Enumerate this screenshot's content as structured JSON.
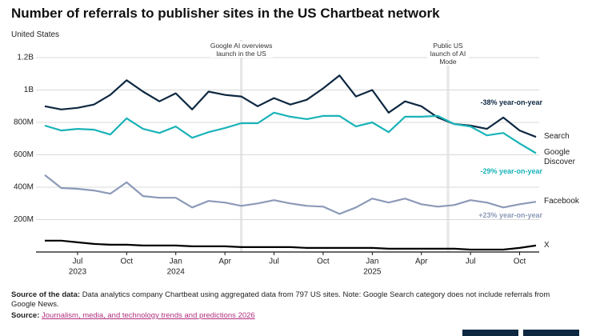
{
  "chart_data": {
    "type": "line",
    "title": "Number of referrals to publisher sites in the US Chartbeat network",
    "subtitle": "United States",
    "x": [
      "2023-05",
      "2023-06",
      "2023-07",
      "2023-08",
      "2023-09",
      "2023-10",
      "2023-11",
      "2023-12",
      "2024-01",
      "2024-02",
      "2024-03",
      "2024-04",
      "2024-05",
      "2024-06",
      "2024-07",
      "2024-08",
      "2024-09",
      "2024-10",
      "2024-11",
      "2024-12",
      "2025-01",
      "2025-02",
      "2025-03",
      "2025-04",
      "2025-05",
      "2025-06",
      "2025-07",
      "2025-08",
      "2025-09",
      "2025-10",
      "2025-11"
    ],
    "xlim": [
      "2023-05",
      "2025-11"
    ],
    "xticks": [
      {
        "value": "2023-07",
        "label": "Jul",
        "year": "2023"
      },
      {
        "value": "2023-10",
        "label": "Oct"
      },
      {
        "value": "2024-01",
        "label": "Jan",
        "year": "2024"
      },
      {
        "value": "2024-04",
        "label": "Apr"
      },
      {
        "value": "2024-07",
        "label": "Jul"
      },
      {
        "value": "2024-10",
        "label": "Oct"
      },
      {
        "value": "2025-01",
        "label": "Jan",
        "year": "2025"
      },
      {
        "value": "2025-04",
        "label": "Apr"
      },
      {
        "value": "2025-07",
        "label": "Jul"
      },
      {
        "value": "2025-10",
        "label": "Oct"
      }
    ],
    "ylim": [
      0,
      1200000000
    ],
    "yticks": [
      {
        "value": 200000000,
        "label": "200M"
      },
      {
        "value": 400000000,
        "label": "400M"
      },
      {
        "value": 600000000,
        "label": "600M"
      },
      {
        "value": 800000000,
        "label": "800M"
      },
      {
        "value": 1000000000,
        "label": "1B"
      },
      {
        "value": 1200000000,
        "label": "1.2B"
      }
    ],
    "grid": true,
    "series": [
      {
        "name": "Search",
        "color": "#0e2841",
        "note": "-38% year-on-year",
        "values": [
          900000000,
          880000000,
          890000000,
          910000000,
          970000000,
          1060000000,
          990000000,
          930000000,
          980000000,
          880000000,
          990000000,
          970000000,
          960000000,
          900000000,
          950000000,
          910000000,
          940000000,
          1010000000,
          1090000000,
          960000000,
          1000000000,
          860000000,
          930000000,
          900000000,
          830000000,
          790000000,
          780000000,
          760000000,
          830000000,
          750000000,
          710000000
        ]
      },
      {
        "name": "Google Discover",
        "color": "#1ab3b8",
        "note": "-29% year-on-year",
        "values": [
          780000000,
          750000000,
          760000000,
          755000000,
          725000000,
          825000000,
          760000000,
          735000000,
          775000000,
          705000000,
          740000000,
          765000000,
          795000000,
          795000000,
          860000000,
          835000000,
          820000000,
          840000000,
          840000000,
          775000000,
          800000000,
          740000000,
          835000000,
          835000000,
          840000000,
          790000000,
          775000000,
          720000000,
          735000000,
          670000000,
          610000000
        ]
      },
      {
        "name": "Facebook",
        "color": "#8c9ab8",
        "note": "+23% year-on-year",
        "values": [
          475000000,
          395000000,
          390000000,
          380000000,
          360000000,
          430000000,
          345000000,
          335000000,
          335000000,
          275000000,
          315000000,
          305000000,
          285000000,
          300000000,
          320000000,
          300000000,
          285000000,
          280000000,
          235000000,
          275000000,
          330000000,
          305000000,
          330000000,
          295000000,
          280000000,
          290000000,
          320000000,
          305000000,
          275000000,
          295000000,
          310000000
        ]
      },
      {
        "name": "X",
        "color": "#000000",
        "values": [
          70000000,
          70000000,
          60000000,
          50000000,
          45000000,
          45000000,
          40000000,
          40000000,
          40000000,
          35000000,
          35000000,
          35000000,
          30000000,
          30000000,
          30000000,
          30000000,
          25000000,
          25000000,
          25000000,
          25000000,
          25000000,
          20000000,
          20000000,
          20000000,
          20000000,
          20000000,
          15000000,
          15000000,
          15000000,
          25000000,
          40000000
        ]
      }
    ],
    "annotations": [
      {
        "x": "2024-05",
        "text": "Google AI overviews launch in the US"
      },
      {
        "x": "2025-05-20",
        "text": "Public US launch of AI Mode"
      }
    ]
  },
  "footer": {
    "data_label": "Source of the data:",
    "data_text": "Data analytics company Chartbeat using aggregated data from 797 US sites. Note: Google Search category does not include referrals from Google News.",
    "source_label": "Source:",
    "source_link": "Journalism, media, and technology trends and predictions 2026"
  }
}
